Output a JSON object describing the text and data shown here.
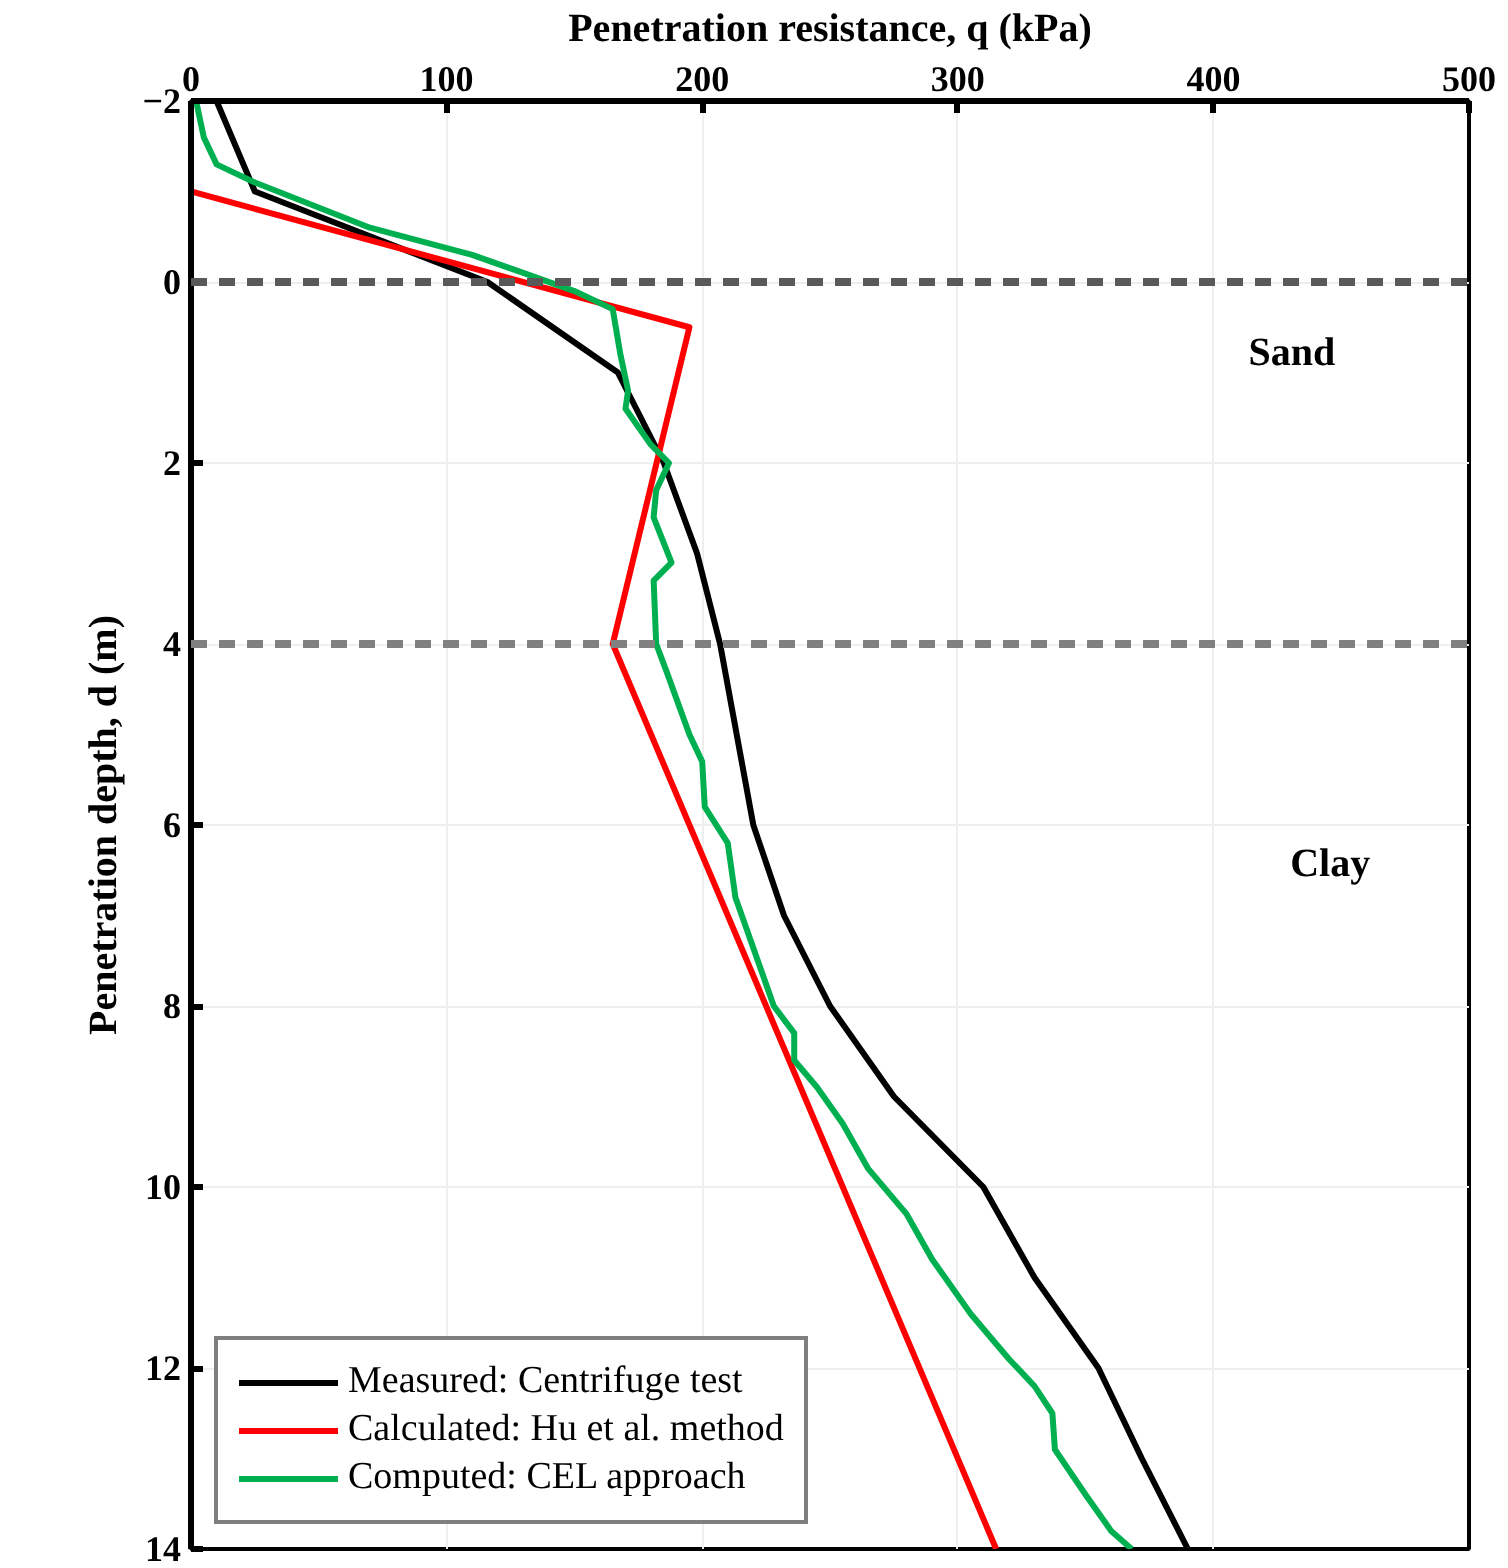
{
  "chart_data": {
    "type": "line",
    "xlabel": "Penetration resistance, q (kPa)",
    "ylabel": "Penetration depth, d (m)",
    "xlim": [
      0,
      500
    ],
    "xticks": [
      0,
      100,
      200,
      300,
      400,
      500
    ],
    "ylim": [
      14,
      -2
    ],
    "yticks": [
      -2,
      0,
      2,
      4,
      6,
      8,
      10,
      12,
      14
    ],
    "grid": true,
    "legend": "bottom left",
    "line_style": "solid",
    "series": [
      {
        "name": "Measured: Centrifuge test",
        "color": "#000000",
        "x": [
          10,
          25,
          116,
          167,
          185,
          198,
          207,
          220,
          232,
          250,
          275,
          310,
          330,
          355,
          372,
          390
        ],
        "values": [
          -2,
          -1,
          0,
          1,
          2,
          3,
          4,
          6,
          7,
          8,
          9,
          10,
          11,
          12,
          13,
          14
        ]
      },
      {
        "name": "Calculated: Hu et al. method",
        "color": "#ff0000",
        "x": [
          0,
          0,
          195,
          165,
          315
        ],
        "values": [
          -2,
          -1,
          0.5,
          4,
          14
        ]
      },
      {
        "name": "Computed: CEL approach",
        "color": "#00b050",
        "x": [
          2,
          5,
          10,
          25,
          70,
          110,
          130,
          150,
          165,
          168,
          171,
          170,
          180,
          187,
          182,
          181,
          188,
          181,
          182,
          186,
          195,
          200,
          201,
          210,
          213,
          218,
          223,
          228,
          236,
          236,
          245,
          255,
          265,
          280,
          290,
          305,
          320,
          330,
          337,
          338,
          350,
          360,
          368
        ],
        "values": [
          -2,
          -1.6,
          -1.3,
          -1.1,
          -0.6,
          -0.3,
          -0.1,
          0.1,
          0.3,
          0.8,
          1.2,
          1.4,
          1.8,
          2,
          2.3,
          2.6,
          3.1,
          3.3,
          4,
          4.3,
          5,
          5.3,
          5.8,
          6.2,
          6.8,
          7.2,
          7.6,
          8.0,
          8.3,
          8.6,
          8.9,
          9.3,
          9.8,
          10.3,
          10.8,
          11.4,
          11.9,
          12.2,
          12.5,
          12.9,
          13.4,
          13.8,
          14
        ]
      }
    ],
    "ref_lines": [
      {
        "axis": "y",
        "value": 0,
        "color": "#595959",
        "line_style": "dashed"
      },
      {
        "axis": "y",
        "value": 4,
        "color": "#808080",
        "line_style": "dashed"
      }
    ],
    "annotations": [
      "Sand",
      "Clay"
    ]
  }
}
